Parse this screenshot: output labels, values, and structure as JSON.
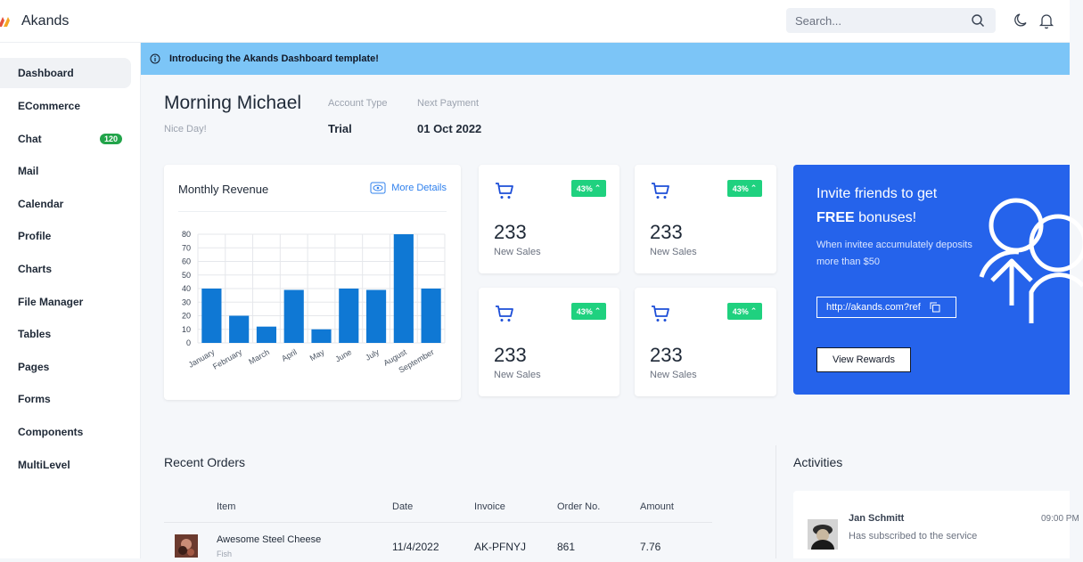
{
  "app": {
    "name": "Akands"
  },
  "search": {
    "placeholder": "Search..."
  },
  "sidebar": {
    "items": [
      {
        "label": "Dashboard",
        "active": true
      },
      {
        "label": "ECommerce"
      },
      {
        "label": "Chat",
        "badge": "120"
      },
      {
        "label": "Mail"
      },
      {
        "label": "Calendar"
      },
      {
        "label": "Profile"
      },
      {
        "label": "Charts"
      },
      {
        "label": "File Manager"
      },
      {
        "label": "Tables"
      },
      {
        "label": "Pages"
      },
      {
        "label": "Forms"
      },
      {
        "label": "Components"
      },
      {
        "label": "MultiLevel"
      }
    ]
  },
  "banner": {
    "text": "Introducing the Akands Dashboard template!"
  },
  "greeting": {
    "title": "Morning Michael",
    "subtitle": "Nice Day!",
    "account_type_label": "Account Type",
    "account_type_value": "Trial",
    "next_payment_label": "Next Payment",
    "next_payment_value": "01 Oct 2022"
  },
  "revenue": {
    "title": "Monthly Revenue",
    "more_label": "More Details",
    "accent": "#0f78d4"
  },
  "chart_data": {
    "type": "bar",
    "categories": [
      "January",
      "February",
      "March",
      "April",
      "May",
      "June",
      "July",
      "August",
      "September"
    ],
    "values": [
      40,
      20,
      12,
      39,
      10,
      40,
      39,
      80,
      40
    ],
    "ylim": [
      0,
      80
    ],
    "yticks": [
      0,
      10,
      20,
      30,
      40,
      50,
      60,
      70,
      80
    ],
    "grid": true,
    "color": "#0f78d4"
  },
  "stats": [
    {
      "value": "233",
      "label": "New Sales",
      "change": "43%"
    },
    {
      "value": "233",
      "label": "New Sales",
      "change": "43%"
    },
    {
      "value": "233",
      "label": "New Sales",
      "change": "43%"
    },
    {
      "value": "233",
      "label": "New Sales",
      "change": "43%"
    }
  ],
  "invite": {
    "line1": "Invite friends to get",
    "line2_bold": "FREE",
    "line2_rest": " bonuses!",
    "desc": "When invitee accumulately deposits more than $50",
    "link": "http://akands.com?ref",
    "button": "View Rewards",
    "bg": "#2563eb"
  },
  "orders": {
    "title": "Recent Orders",
    "columns": [
      "Item",
      "Date",
      "Invoice",
      "Order No.",
      "Amount"
    ],
    "rows": [
      {
        "item": "Awesome Steel Cheese",
        "category": "Fish",
        "date": "11/4/2022",
        "invoice": "AK-PFNYJ",
        "order_no": "861",
        "amount": "7.76"
      }
    ]
  },
  "activities": {
    "title": "Activities",
    "items": [
      {
        "name": "Jan Schmitt",
        "text": "Has subscribed to the service",
        "time": "09:00 PM"
      }
    ]
  }
}
